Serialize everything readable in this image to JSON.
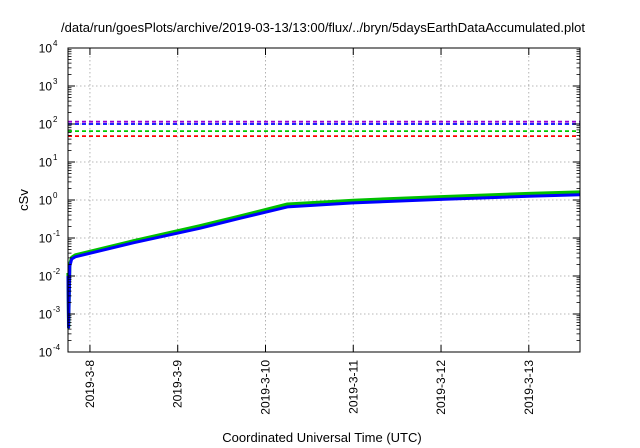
{
  "chart_data": {
    "type": "line",
    "title": "/data/run/goesPlots/archive/2019-03-13/13:00/flux/../bryn/5daysEarthDataAccumulated.plot",
    "xlabel": "Coordinated Universal Time (UTC)",
    "ylabel": "cSv",
    "y_scale": "log",
    "ylim": [
      0.0001,
      10000
    ],
    "xlim": [
      "2019-03-07 18:00",
      "2019-03-13 14:00"
    ],
    "x_ticks": [
      "2019-3-8",
      "2019-3-9",
      "2019-3-10",
      "2019-3-11",
      "2019-3-12",
      "2019-3-13"
    ],
    "y_ticks": [
      {
        "base": "10",
        "exp": "-4"
      },
      {
        "base": "10",
        "exp": "-3"
      },
      {
        "base": "10",
        "exp": "-2"
      },
      {
        "base": "10",
        "exp": "-1"
      },
      {
        "base": "10",
        "exp": "0"
      },
      {
        "base": "10",
        "exp": "1"
      },
      {
        "base": "10",
        "exp": "2"
      },
      {
        "base": "10",
        "exp": "3"
      },
      {
        "base": "10",
        "exp": "4"
      }
    ],
    "grid": true,
    "reference_lines": [
      {
        "value": 115,
        "color": "#9400d3",
        "style": "dashed"
      },
      {
        "value": 100,
        "color": "#0000ff",
        "style": "dashed"
      },
      {
        "value": 65,
        "color": "#00cc00",
        "style": "dashed"
      },
      {
        "value": 48,
        "color": "#ff0000",
        "style": "dashed"
      }
    ],
    "series": [
      {
        "color": "#00c000",
        "points": [
          [
            "2019-03-07 18:00",
            0.012
          ],
          [
            "2019-03-07 18:10",
            0.00045
          ],
          [
            "2019-03-07 18:30",
            0.021
          ],
          [
            "2019-03-07 19:00",
            0.031
          ],
          [
            "2019-03-07 20:00",
            0.036
          ],
          [
            "2019-03-08 12:00",
            0.085
          ],
          [
            "2019-03-09 06:00",
            0.21
          ],
          [
            "2019-03-09 17:00",
            0.38
          ],
          [
            "2019-03-10 06:00",
            0.78
          ],
          [
            "2019-03-11 00:00",
            0.98
          ],
          [
            "2019-03-12 00:00",
            1.22
          ],
          [
            "2019-03-13 00:00",
            1.48
          ],
          [
            "2019-03-13 14:00",
            1.62
          ]
        ]
      },
      {
        "color": "#0000ff",
        "points": [
          [
            "2019-03-07 18:00",
            0.01
          ],
          [
            "2019-03-07 18:10",
            0.00045
          ],
          [
            "2019-03-07 18:30",
            0.018
          ],
          [
            "2019-03-07 19:00",
            0.028
          ],
          [
            "2019-03-07 20:00",
            0.032
          ],
          [
            "2019-03-08 12:00",
            0.075
          ],
          [
            "2019-03-09 06:00",
            0.18
          ],
          [
            "2019-03-09 17:00",
            0.33
          ],
          [
            "2019-03-10 06:00",
            0.66
          ],
          [
            "2019-03-11 00:00",
            0.84
          ],
          [
            "2019-03-12 00:00",
            1.04
          ],
          [
            "2019-03-13 00:00",
            1.25
          ],
          [
            "2019-03-13 14:00",
            1.37
          ]
        ]
      }
    ]
  }
}
